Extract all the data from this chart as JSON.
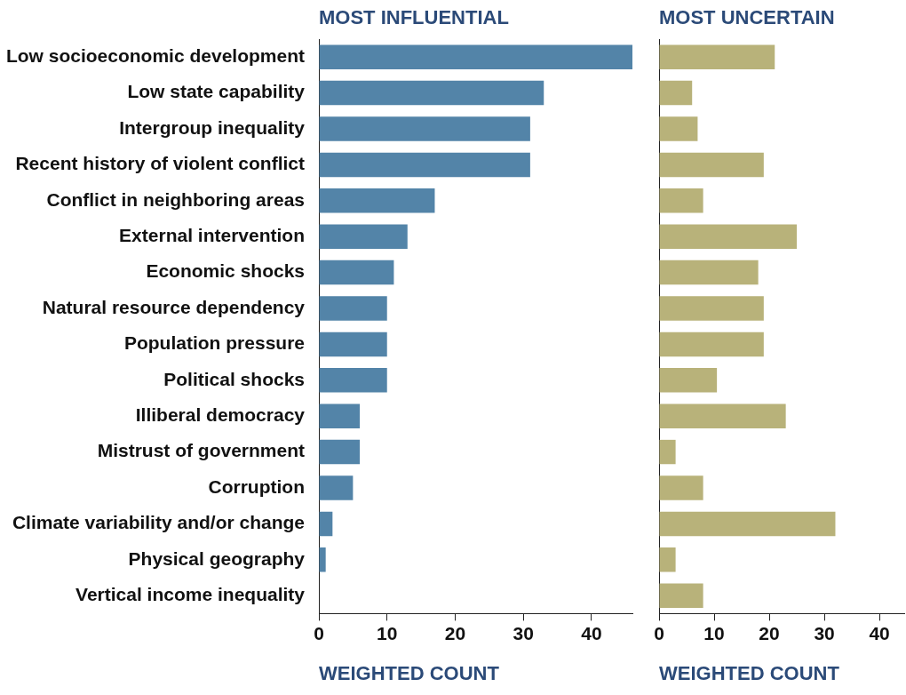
{
  "chart_data": [
    {
      "type": "bar",
      "orientation": "horizontal",
      "title": "MOST INFLUENTIAL",
      "xlabel": "WEIGHTED COUNT",
      "categories": [
        "Low socioeconomic development",
        "Low state capability",
        "Intergroup inequality",
        "Recent history of violent conflict",
        "Conflict in neighboring areas",
        "External intervention",
        "Economic shocks",
        "Natural resource dependency",
        "Population pressure",
        "Political shocks",
        "Illiberal democracy",
        "Mistrust of government",
        "Corruption",
        "Climate variability and/or change",
        "Physical geography",
        "Vertical income inequality"
      ],
      "values": [
        46,
        33,
        31,
        31,
        17,
        13,
        11,
        10,
        10,
        10,
        6,
        6,
        5,
        2,
        1,
        0
      ],
      "color": "#5384a8",
      "xlim": [
        0,
        46
      ],
      "xticks": [
        0,
        10,
        20,
        30,
        40
      ]
    },
    {
      "type": "bar",
      "orientation": "horizontal",
      "title": "MOST UNCERTAIN",
      "xlabel": "WEIGHTED COUNT",
      "categories": [
        null,
        null,
        null,
        null,
        null,
        null,
        null,
        null,
        null,
        null,
        null,
        null,
        null,
        null,
        null,
        null
      ],
      "values": [
        21,
        6,
        7,
        19,
        8,
        25,
        18,
        19,
        19,
        10.5,
        23,
        3,
        8,
        32,
        3,
        8
      ],
      "color": "#b8b27a",
      "xlim": [
        0,
        44.5
      ],
      "xticks": [
        0,
        10,
        20,
        30,
        40
      ],
      "tick_labels": "x"
    }
  ]
}
